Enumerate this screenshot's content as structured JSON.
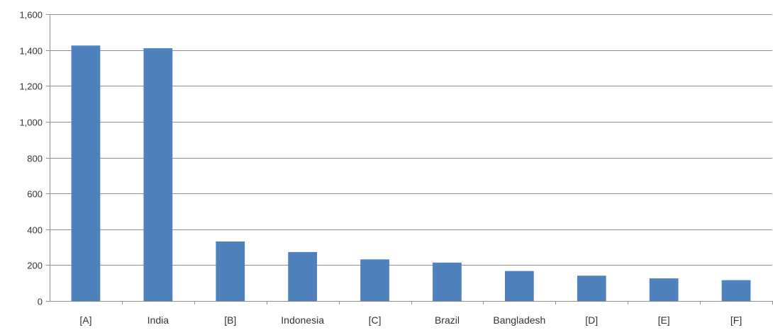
{
  "chart_data": {
    "type": "bar",
    "title": "",
    "xlabel": "",
    "ylabel": "",
    "categories": [
      "[A]",
      "India",
      "[B]",
      "Indonesia",
      "[C]",
      "Brazil",
      "Bangladesh",
      "[D]",
      "[E]",
      "[F]"
    ],
    "values": [
      1425,
      1410,
      332,
      273,
      232,
      214,
      167,
      141,
      126,
      116
    ],
    "ylim": [
      0,
      1600
    ],
    "yticks": [
      0,
      200,
      400,
      600,
      800,
      1000,
      1200,
      1400,
      1600
    ],
    "ytick_labels": [
      "0",
      "200",
      "400",
      "600",
      "800",
      "1,000",
      "1,200",
      "1,400",
      "1,600"
    ],
    "grid": true,
    "legend": "none",
    "bar_color": "#4f81bd"
  }
}
